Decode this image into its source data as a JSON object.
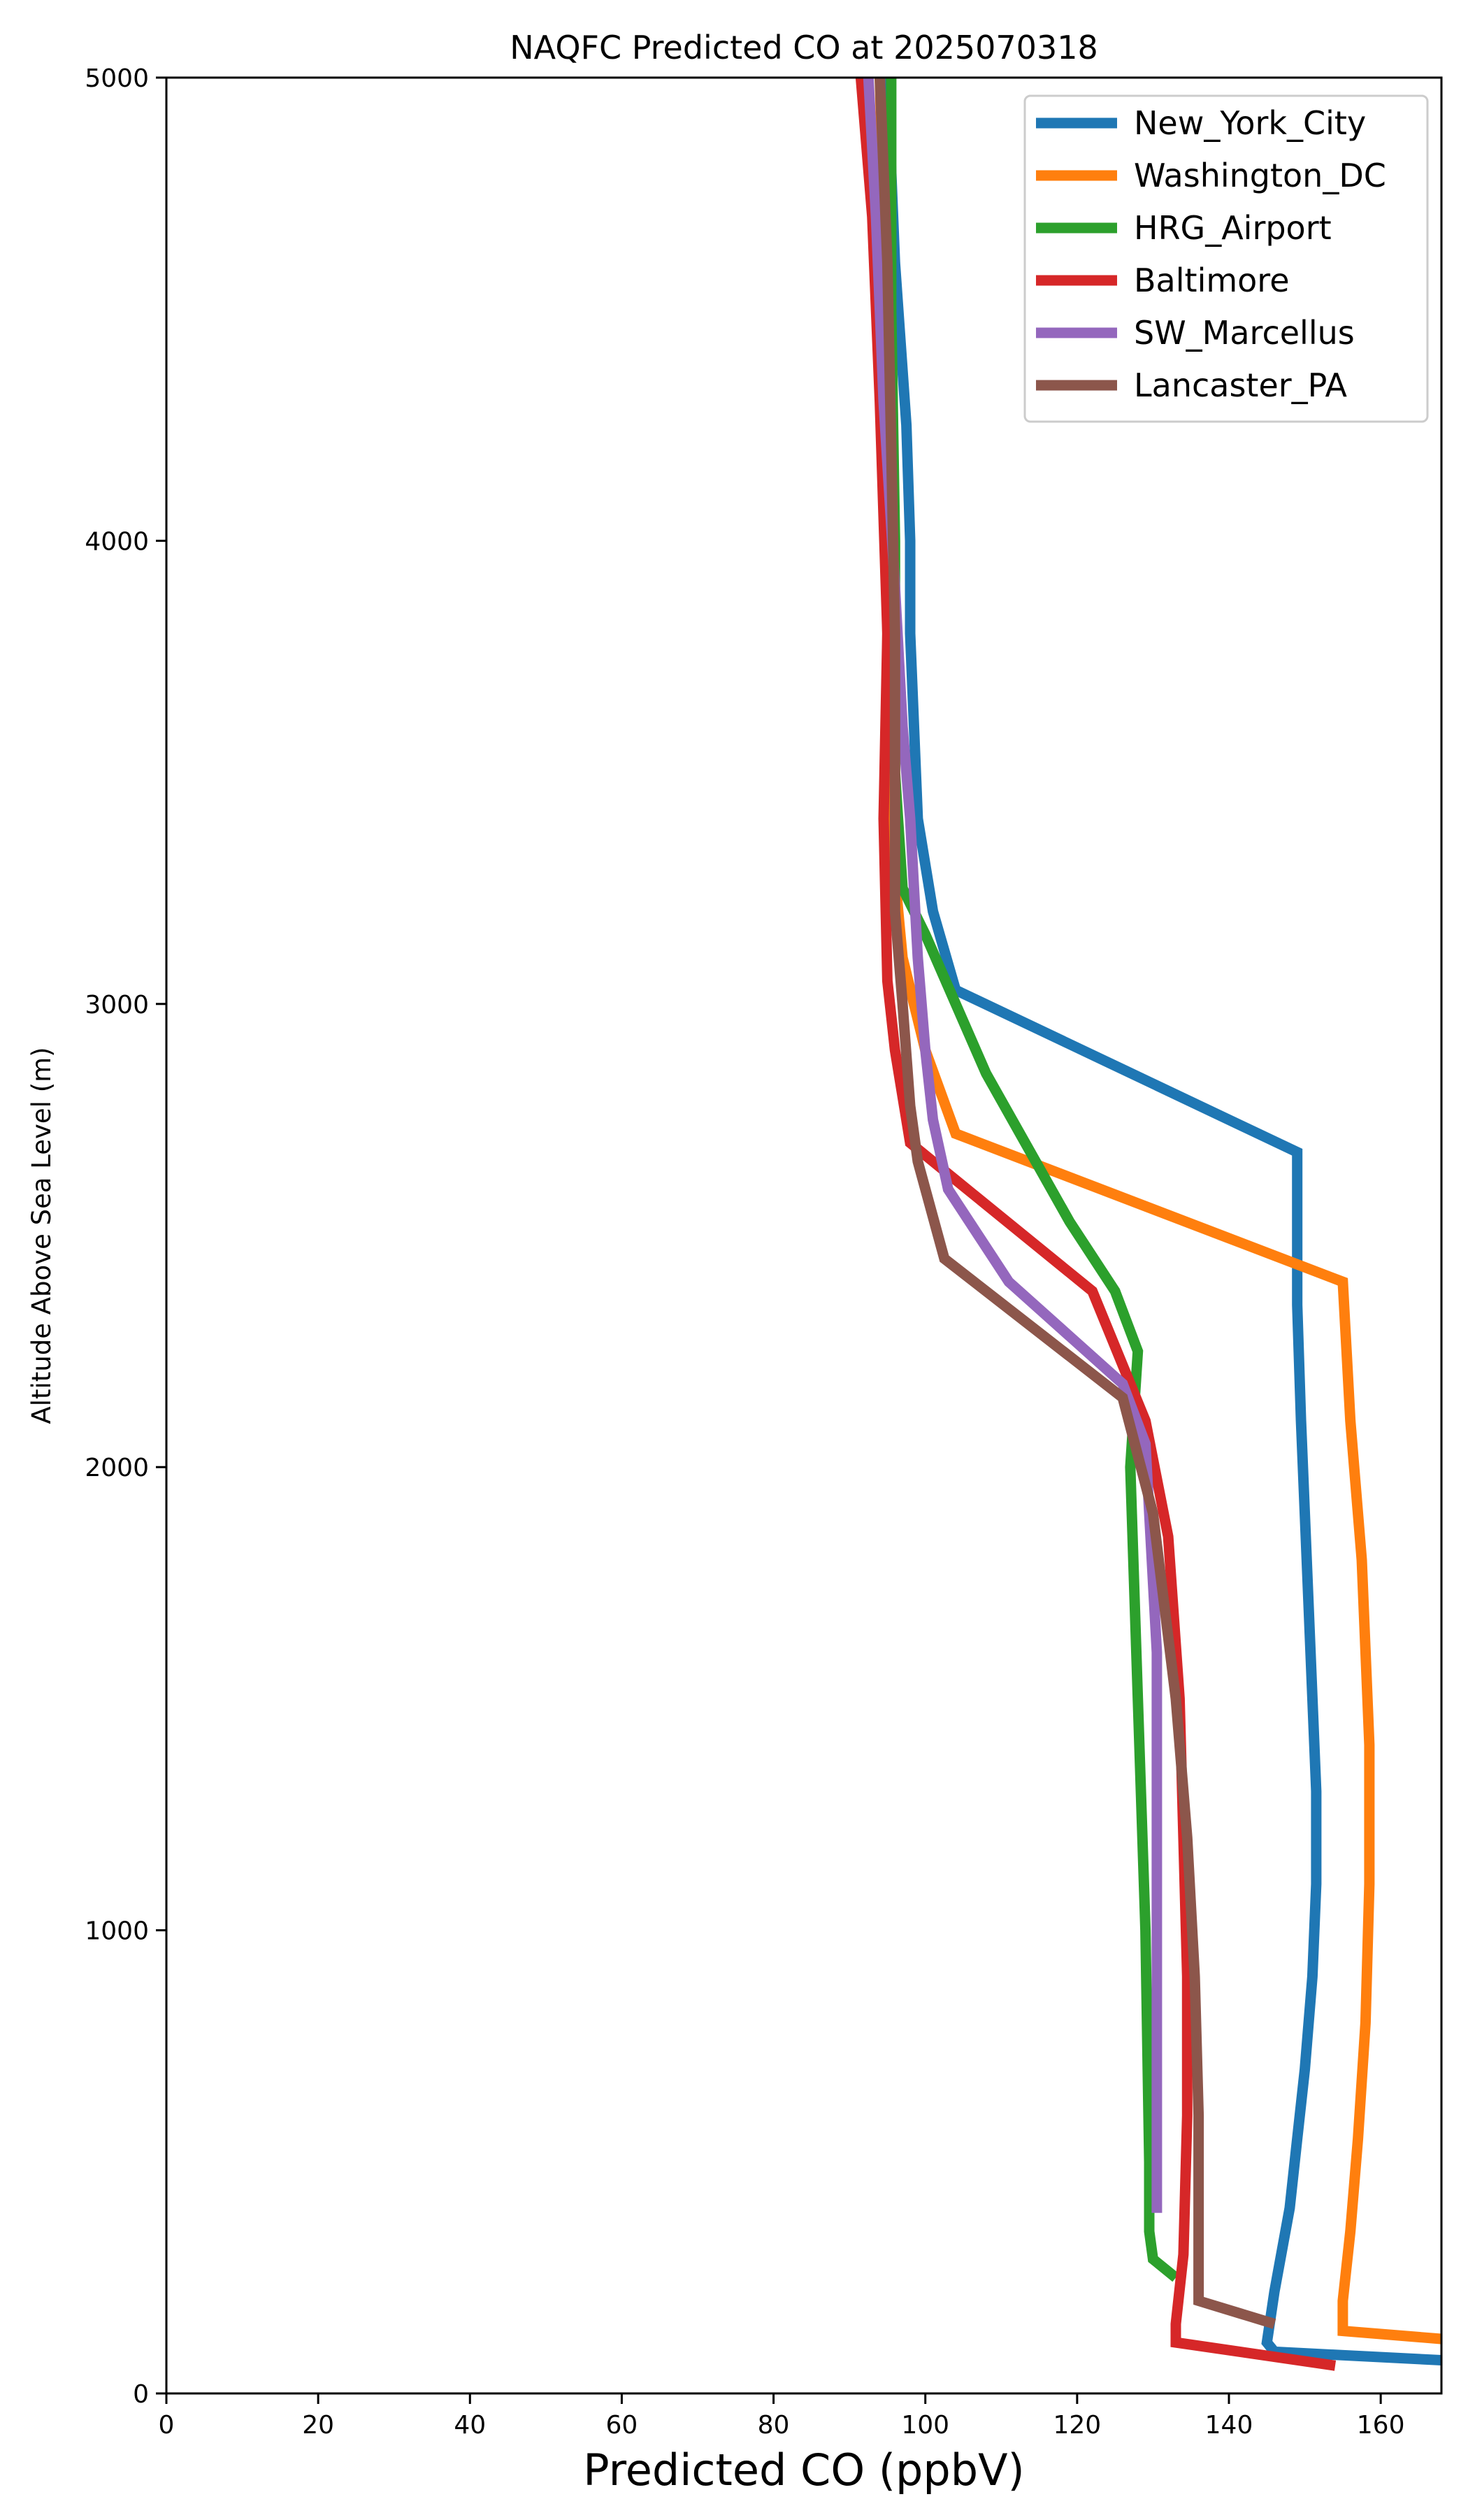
{
  "chart_data": {
    "type": "line",
    "title": "NAQFC Predicted CO at 2025070318",
    "xlabel": "Predicted CO (ppbV)",
    "ylabel": "Altitude Above Sea Level (m)",
    "xlim": [
      0,
      168
    ],
    "ylim": [
      0,
      5000
    ],
    "xticks": [
      0,
      20,
      40,
      60,
      80,
      100,
      120,
      140,
      160
    ],
    "yticks": [
      0,
      1000,
      2000,
      3000,
      4000,
      5000
    ],
    "grid": false,
    "legend_position": "top-right",
    "series": [
      {
        "name": "New_York_City",
        "color": "#1f77b4",
        "points": [
          [
            170,
            70
          ],
          [
            146,
            90
          ],
          [
            145,
            110
          ],
          [
            146,
            220
          ],
          [
            148,
            400
          ],
          [
            149,
            550
          ],
          [
            150,
            700
          ],
          [
            151,
            900
          ],
          [
            151.5,
            1100
          ],
          [
            151.5,
            1300
          ],
          [
            150.5,
            1700
          ],
          [
            149.5,
            2100
          ],
          [
            149,
            2350
          ],
          [
            149,
            2680
          ],
          [
            104,
            3030
          ],
          [
            101,
            3200
          ],
          [
            99,
            3400
          ],
          [
            98,
            3800
          ],
          [
            98,
            4000
          ],
          [
            97.5,
            4250
          ],
          [
            96,
            4600
          ],
          [
            95,
            5000
          ]
        ]
      },
      {
        "name": "Washington_DC",
        "color": "#ff7f0e",
        "points": [
          [
            170,
            115
          ],
          [
            155,
            135
          ],
          [
            155,
            200
          ],
          [
            156,
            350
          ],
          [
            157,
            550
          ],
          [
            158,
            800
          ],
          [
            158.5,
            1100
          ],
          [
            158.5,
            1400
          ],
          [
            157.5,
            1800
          ],
          [
            156,
            2100
          ],
          [
            155,
            2400
          ],
          [
            104,
            2720
          ],
          [
            100,
            2900
          ],
          [
            97,
            3100
          ],
          [
            95,
            3450
          ],
          [
            95,
            3800
          ],
          [
            95,
            4300
          ],
          [
            94.5,
            4700
          ],
          [
            94,
            5000
          ]
        ]
      },
      {
        "name": "HRG_Airport",
        "color": "#2ca02c",
        "points": [
          [
            133,
            250
          ],
          [
            130,
            290
          ],
          [
            129.5,
            350
          ],
          [
            129.5,
            500
          ],
          [
            129,
            1000
          ],
          [
            128,
            1500
          ],
          [
            127,
            2000
          ],
          [
            128,
            2250
          ],
          [
            125,
            2380
          ],
          [
            119,
            2530
          ],
          [
            108,
            2850
          ],
          [
            100,
            3150
          ],
          [
            97,
            3250
          ],
          [
            96,
            3500
          ],
          [
            96,
            4000
          ],
          [
            95.5,
            4500
          ],
          [
            95.5,
            5000
          ]
        ]
      },
      {
        "name": "Baltimore",
        "color": "#d62728",
        "points": [
          [
            154,
            60
          ],
          [
            133,
            110
          ],
          [
            133,
            150
          ],
          [
            134,
            300
          ],
          [
            134.5,
            600
          ],
          [
            134.5,
            900
          ],
          [
            134,
            1200
          ],
          [
            133.5,
            1500
          ],
          [
            132,
            1850
          ],
          [
            129,
            2100
          ],
          [
            122,
            2380
          ],
          [
            104,
            2620
          ],
          [
            98,
            2700
          ],
          [
            96,
            2900
          ],
          [
            95,
            3050
          ],
          [
            94.5,
            3400
          ],
          [
            95,
            3800
          ],
          [
            94,
            4300
          ],
          [
            93,
            4700
          ],
          [
            91.5,
            5000
          ]
        ]
      },
      {
        "name": "SW_Marcellus",
        "color": "#9467bd",
        "points": [
          [
            130.5,
            390
          ],
          [
            130.5,
            600
          ],
          [
            130.5,
            900
          ],
          [
            130.5,
            1200
          ],
          [
            130.5,
            1600
          ],
          [
            129,
            2050
          ],
          [
            126,
            2180
          ],
          [
            111,
            2400
          ],
          [
            103,
            2600
          ],
          [
            101,
            2750
          ],
          [
            100,
            2900
          ],
          [
            99,
            3100
          ],
          [
            98,
            3400
          ],
          [
            97,
            3600
          ],
          [
            96,
            3900
          ],
          [
            94.5,
            4300
          ],
          [
            93.5,
            4700
          ],
          [
            92.5,
            5000
          ]
        ]
      },
      {
        "name": "Lancaster_PA",
        "color": "#8c564b",
        "points": [
          [
            146,
            150
          ],
          [
            136,
            200
          ],
          [
            136,
            300
          ],
          [
            136,
            600
          ],
          [
            135.5,
            900
          ],
          [
            134.5,
            1200
          ],
          [
            133,
            1500
          ],
          [
            130,
            1900
          ],
          [
            126,
            2150
          ],
          [
            102.5,
            2450
          ],
          [
            99,
            2660
          ],
          [
            98,
            2780
          ],
          [
            97,
            3000
          ],
          [
            96,
            3200
          ],
          [
            96,
            3500
          ],
          [
            96,
            3800
          ],
          [
            95.5,
            4200
          ],
          [
            95,
            4600
          ],
          [
            94,
            5000
          ]
        ]
      }
    ]
  }
}
